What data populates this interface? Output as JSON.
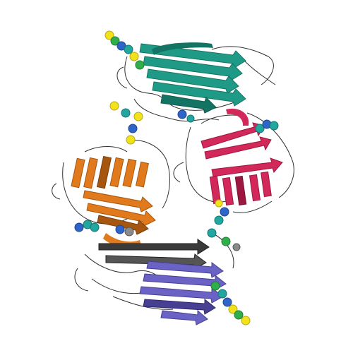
{
  "image": {
    "background": "#ffffff"
  },
  "chains": [
    {
      "name": "chain-teal",
      "color": "#1f9a86",
      "dark": "#137463"
    },
    {
      "name": "chain-crimson",
      "color": "#d2285a",
      "dark": "#9c1840"
    },
    {
      "name": "chain-orange",
      "color": "#e07a1d",
      "dark": "#a6560f"
    },
    {
      "name": "chain-violet",
      "color": "#6a62c4",
      "dark": "#463f92"
    }
  ],
  "glycan_colors": {
    "yellow": "#f1e21c",
    "green": "#2fae4a",
    "blue": "#2f64c8",
    "teal": "#22a6a0",
    "gray": "#8a8a8a"
  },
  "coil_color": "#303030"
}
